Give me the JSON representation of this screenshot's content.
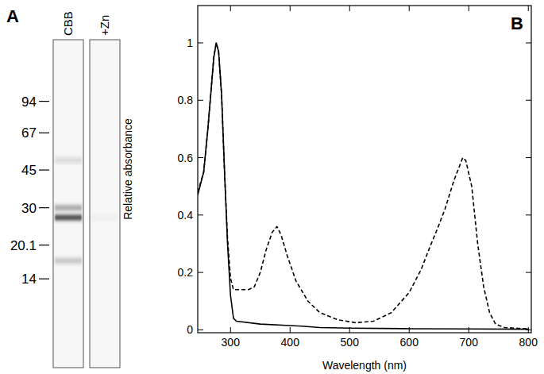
{
  "chart_data": [
    {
      "type": "gel",
      "title": "A",
      "log": "y",
      "ylim": [
        5.4,
        182
      ],
      "yticks": [
        94,
        67,
        45,
        30,
        20.1,
        14
      ],
      "series": [
        {
          "name": "CBB",
          "values": [
            50,
            30,
            27,
            17
          ],
          "intensity": [
            0.15,
            0.4,
            0.9,
            0.25
          ]
        },
        {
          "name": "+Zn",
          "values": [
            27
          ],
          "intensity": [
            0.05
          ]
        }
      ]
    },
    {
      "type": "line",
      "title": "B",
      "xlabel": "Wavelength (nm)",
      "ylabel": "Relative absorbance",
      "xlim": [
        245,
        805
      ],
      "xticks": [
        300,
        400,
        500,
        600,
        700,
        800
      ],
      "ylim": [
        -0.01,
        1.13
      ],
      "yticks": [
        0,
        0.2,
        0.4,
        0.6,
        0.8,
        1
      ],
      "series": [
        {
          "color": "#000000",
          "line_style": "solid",
          "x": [
            245,
            255,
            262,
            268,
            272,
            276,
            280,
            285,
            290,
            295,
            300,
            305,
            310,
            350,
            400,
            420,
            450,
            500,
            600,
            700,
            800
          ],
          "values": [
            0.47,
            0.55,
            0.7,
            0.85,
            0.95,
            1.0,
            0.97,
            0.82,
            0.55,
            0.3,
            0.12,
            0.04,
            0.03,
            0.02,
            0.015,
            0.013,
            0.008,
            0.006,
            0.004,
            0.003,
            0.002
          ]
        },
        {
          "color": "#000000",
          "line_style": "dashed",
          "x": [
            245,
            255,
            262,
            268,
            272,
            276,
            280,
            285,
            290,
            295,
            300,
            305,
            315,
            330,
            340,
            350,
            360,
            370,
            378,
            385,
            395,
            410,
            430,
            450,
            480,
            510,
            540,
            570,
            600,
            620,
            635,
            645,
            660,
            675,
            690,
            695,
            705,
            715,
            725,
            735,
            745,
            760,
            800
          ],
          "values": [
            0.48,
            0.55,
            0.7,
            0.85,
            0.95,
            1.0,
            0.97,
            0.82,
            0.55,
            0.32,
            0.18,
            0.14,
            0.14,
            0.14,
            0.15,
            0.2,
            0.28,
            0.34,
            0.36,
            0.33,
            0.26,
            0.17,
            0.1,
            0.06,
            0.035,
            0.025,
            0.03,
            0.06,
            0.13,
            0.21,
            0.29,
            0.34,
            0.42,
            0.52,
            0.6,
            0.59,
            0.5,
            0.3,
            0.15,
            0.06,
            0.02,
            0.008,
            0.003
          ]
        }
      ]
    }
  ]
}
